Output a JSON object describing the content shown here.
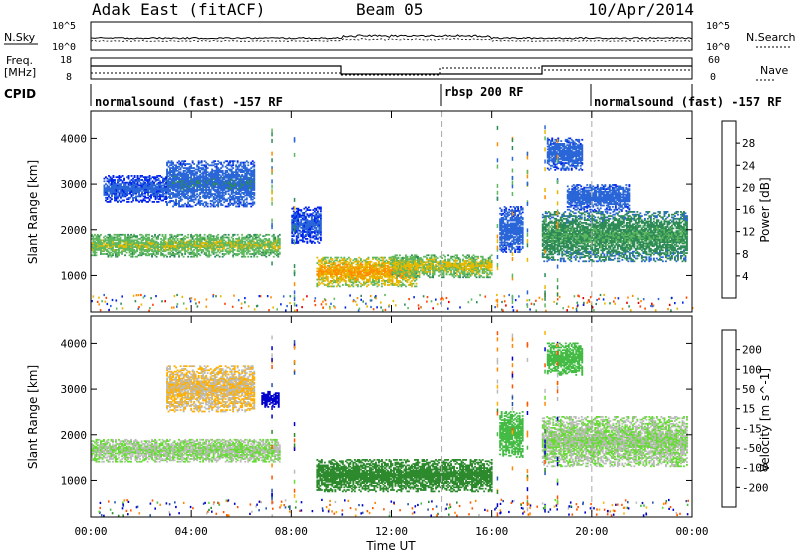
{
  "header": {
    "title": "Adak East (fitACF)",
    "beam": "Beam 05",
    "date": "10/Apr/2014"
  },
  "labels": {
    "nsky": "N.Sky",
    "nsearch": "N.Search",
    "freq_line1": "Freq.",
    "freq_line2": "[MHz]",
    "nave": "Nave",
    "cpid": "CPID",
    "tick_1e5_left": "10^5",
    "tick_1e0_left": "10^0",
    "tick_1e5_right": "10^5",
    "tick_1e0_right": "10^0",
    "freq_18": "18",
    "freq_8": "8",
    "nave_60": "60",
    "nave_0": "0"
  },
  "cpid_segments": [
    {
      "start_h": 0,
      "end_h": 14,
      "label": "normalsound (fast) -157 RF"
    },
    {
      "start_h": 14,
      "end_h": 20,
      "label": "rbsp 200 RF"
    },
    {
      "start_h": 20,
      "end_h": 24,
      "label": "normalsound (fast) -157 RF"
    }
  ],
  "colors": {
    "power": [
      "#0022ee",
      "#2a66d8",
      "#2e8b57",
      "#5fb85f",
      "#e6b800",
      "#ff8c00",
      "#ff4500",
      "#e60000"
    ],
    "velocity": [
      "#e60000",
      "#ff5500",
      "#ff8800",
      "#ffb000",
      "#bbbbbb",
      "#bbbbbb",
      "#66dd33",
      "#44bb44",
      "#2d8a2d",
      "#2255aa",
      "#0000cc"
    ]
  },
  "chart_data": [
    {
      "type": "heatmap",
      "name": "power",
      "ylabel": "Slant Range [km]",
      "xlim": [
        0,
        24
      ],
      "ylim": [
        200,
        4600
      ],
      "yticks": [
        "1000",
        "2000",
        "3000",
        "4000"
      ],
      "colorbar": {
        "label": "Power [dB]",
        "ticks": [
          "4",
          "8",
          "12",
          "16",
          "20",
          "24",
          "28"
        ],
        "range": [
          0,
          32
        ]
      },
      "regions": [
        {
          "t": [
            0.0,
            7.5
          ],
          "r": [
            1400,
            1900
          ],
          "level": 14,
          "spread": 4
        },
        {
          "t": [
            3.0,
            6.5
          ],
          "r": [
            2500,
            3500
          ],
          "level": 6,
          "spread": 3
        },
        {
          "t": [
            0.5,
            3.0
          ],
          "r": [
            2600,
            3200
          ],
          "level": 4,
          "spread": 2
        },
        {
          "t": [
            8.0,
            9.2
          ],
          "r": [
            1700,
            2500
          ],
          "level": 4,
          "spread": 2
        },
        {
          "t": [
            9.0,
            13.0
          ],
          "r": [
            750,
            1400
          ],
          "level": 18,
          "spread": 6
        },
        {
          "t": [
            12.0,
            16.0
          ],
          "r": [
            950,
            1450
          ],
          "level": 15,
          "spread": 5
        },
        {
          "t": [
            16.3,
            17.2
          ],
          "r": [
            1500,
            2500
          ],
          "level": 5,
          "spread": 2
        },
        {
          "t": [
            18.0,
            23.8
          ],
          "r": [
            1300,
            2400
          ],
          "level": 10,
          "spread": 4
        },
        {
          "t": [
            18.2,
            19.6
          ],
          "r": [
            3300,
            4000
          ],
          "level": 5,
          "spread": 2
        },
        {
          "t": [
            19.0,
            21.5
          ],
          "r": [
            2400,
            3000
          ],
          "level": 5,
          "spread": 2
        }
      ]
    },
    {
      "type": "heatmap",
      "name": "velocity",
      "ylabel": "Slant Range [km]",
      "xlabel": "Time UT",
      "xlim": [
        0,
        24
      ],
      "ylim": [
        200,
        4600
      ],
      "xticks": [
        "00:00",
        "04:00",
        "08:00",
        "12:00",
        "16:00",
        "20:00",
        "00:00"
      ],
      "yticks": [
        "1000",
        "2000",
        "3000",
        "4000"
      ],
      "colorbar": {
        "label": "Velocity [m s^-1]",
        "ticks": [
          "200",
          "100",
          "50",
          "15",
          "-15",
          "-50",
          "-100",
          "-200"
        ]
      },
      "regions": [
        {
          "t": [
            0.0,
            7.5
          ],
          "r": [
            1400,
            1900
          ],
          "v": 0
        },
        {
          "t": [
            3.0,
            6.5
          ],
          "r": [
            2500,
            3500
          ],
          "v": -30
        },
        {
          "t": [
            6.8,
            7.5
          ],
          "r": [
            2600,
            2950
          ],
          "v": 150
        },
        {
          "t": [
            9.0,
            16.0
          ],
          "r": [
            750,
            1450
          ],
          "v": 35
        },
        {
          "t": [
            16.3,
            17.2
          ],
          "r": [
            1500,
            2500
          ],
          "v": 25
        },
        {
          "t": [
            18.0,
            23.8
          ],
          "r": [
            1300,
            2400
          ],
          "v": 0
        },
        {
          "t": [
            18.2,
            19.6
          ],
          "r": [
            3300,
            4000
          ],
          "v": 20
        }
      ]
    }
  ]
}
